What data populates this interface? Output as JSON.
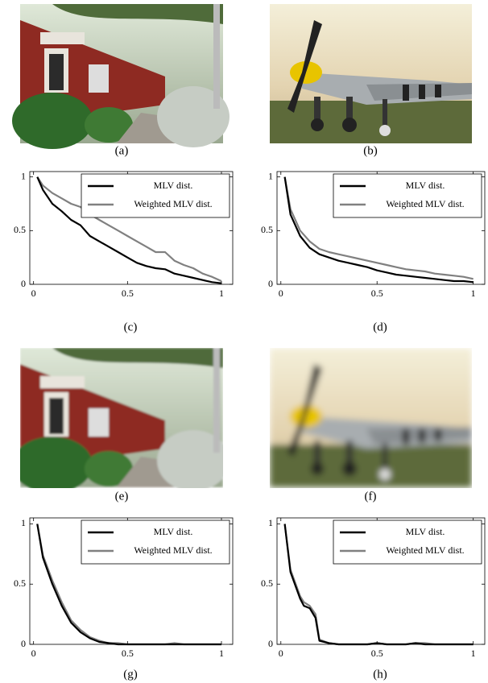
{
  "panels": [
    {
      "caption": "(a)"
    },
    {
      "caption": "(b)"
    },
    {
      "caption": "(e)"
    },
    {
      "caption": "(f)"
    }
  ],
  "chart_data": [
    {
      "type": "line",
      "caption": "(c)",
      "legend": "upper right",
      "x": [
        0.02,
        0.05,
        0.1,
        0.15,
        0.2,
        0.25,
        0.3,
        0.35,
        0.4,
        0.45,
        0.5,
        0.55,
        0.6,
        0.65,
        0.7,
        0.75,
        0.8,
        0.85,
        0.9,
        0.95,
        1.0
      ],
      "series": [
        {
          "name": "MLV dist.",
          "color": "#000000",
          "values": [
            1,
            0.88,
            0.75,
            0.68,
            0.6,
            0.55,
            0.45,
            0.4,
            0.35,
            0.3,
            0.25,
            0.2,
            0.17,
            0.15,
            0.14,
            0.1,
            0.08,
            0.06,
            0.04,
            0.02,
            0.01
          ]
        },
        {
          "name": "Weighted MLV dist.",
          "color": "#808080",
          "values": [
            1,
            0.92,
            0.85,
            0.8,
            0.75,
            0.72,
            0.65,
            0.6,
            0.55,
            0.5,
            0.45,
            0.4,
            0.35,
            0.3,
            0.3,
            0.22,
            0.18,
            0.15,
            0.1,
            0.07,
            0.03
          ]
        }
      ],
      "xlim": [
        -0.02,
        1.06
      ],
      "ylim": [
        0,
        1.05
      ],
      "xticks": [
        0,
        0.5,
        1
      ],
      "yticks": [
        0,
        0.5,
        1
      ]
    },
    {
      "type": "line",
      "caption": "(d)",
      "legend": "upper right",
      "x": [
        0.02,
        0.05,
        0.1,
        0.15,
        0.2,
        0.25,
        0.3,
        0.35,
        0.4,
        0.45,
        0.5,
        0.55,
        0.6,
        0.65,
        0.7,
        0.75,
        0.8,
        0.85,
        0.9,
        0.95,
        1.0
      ],
      "series": [
        {
          "name": "MLV dist.",
          "color": "#000000",
          "values": [
            1,
            0.65,
            0.45,
            0.34,
            0.28,
            0.25,
            0.22,
            0.2,
            0.18,
            0.16,
            0.13,
            0.11,
            0.09,
            0.08,
            0.07,
            0.06,
            0.05,
            0.04,
            0.03,
            0.03,
            0.02
          ]
        },
        {
          "name": "Weighted MLV dist.",
          "color": "#808080",
          "values": [
            1,
            0.7,
            0.5,
            0.4,
            0.33,
            0.3,
            0.28,
            0.26,
            0.24,
            0.22,
            0.2,
            0.18,
            0.16,
            0.14,
            0.13,
            0.12,
            0.1,
            0.09,
            0.08,
            0.07,
            0.05
          ]
        }
      ],
      "xlim": [
        -0.02,
        1.06
      ],
      "ylim": [
        0,
        1.05
      ],
      "xticks": [
        0,
        0.5,
        1
      ],
      "yticks": [
        0,
        0.5,
        1
      ]
    },
    {
      "type": "line",
      "caption": "(g)",
      "legend": "upper right",
      "x": [
        0.02,
        0.05,
        0.1,
        0.15,
        0.2,
        0.25,
        0.3,
        0.35,
        0.4,
        0.45,
        0.5,
        0.55,
        0.6,
        0.65,
        0.7,
        0.75,
        0.8,
        0.85,
        0.9,
        0.95,
        1.0
      ],
      "series": [
        {
          "name": "MLV dist.",
          "color": "#000000",
          "values": [
            1,
            0.72,
            0.5,
            0.32,
            0.18,
            0.1,
            0.05,
            0.02,
            0.01,
            0,
            0,
            0,
            0,
            0,
            0,
            0,
            0,
            0,
            0,
            0,
            0
          ]
        },
        {
          "name": "Weighted MLV dist.",
          "color": "#808080",
          "values": [
            1,
            0.74,
            0.53,
            0.35,
            0.2,
            0.12,
            0.06,
            0.03,
            0.01,
            0.01,
            0,
            0,
            0,
            0,
            0,
            0.01,
            0,
            0,
            0,
            0,
            0
          ]
        }
      ],
      "xlim": [
        -0.02,
        1.06
      ],
      "ylim": [
        0,
        1.05
      ],
      "xticks": [
        0,
        0.5,
        1
      ],
      "yticks": [
        0,
        0.5,
        1
      ]
    },
    {
      "type": "line",
      "caption": "(h)",
      "legend": "upper right",
      "x": [
        0.02,
        0.05,
        0.1,
        0.12,
        0.15,
        0.18,
        0.2,
        0.25,
        0.3,
        0.35,
        0.4,
        0.45,
        0.5,
        0.55,
        0.6,
        0.65,
        0.7,
        0.75,
        0.8,
        0.9,
        1.0
      ],
      "series": [
        {
          "name": "MLV dist.",
          "color": "#000000",
          "values": [
            1,
            0.6,
            0.38,
            0.32,
            0.3,
            0.22,
            0.03,
            0.01,
            0,
            0,
            0,
            0,
            0.01,
            0,
            0,
            0,
            0.01,
            0,
            0,
            0,
            0
          ]
        },
        {
          "name": "Weighted MLV dist.",
          "color": "#808080",
          "values": [
            1,
            0.62,
            0.4,
            0.35,
            0.32,
            0.25,
            0.04,
            0.01,
            0,
            0,
            0,
            0,
            0.01,
            0,
            0,
            0,
            0.01,
            0.01,
            0,
            0,
            0
          ]
        }
      ],
      "xlim": [
        -0.02,
        1.06
      ],
      "ylim": [
        0,
        1.05
      ],
      "xticks": [
        0,
        0.5,
        1
      ],
      "yticks": [
        0,
        0.5,
        1
      ]
    }
  ]
}
